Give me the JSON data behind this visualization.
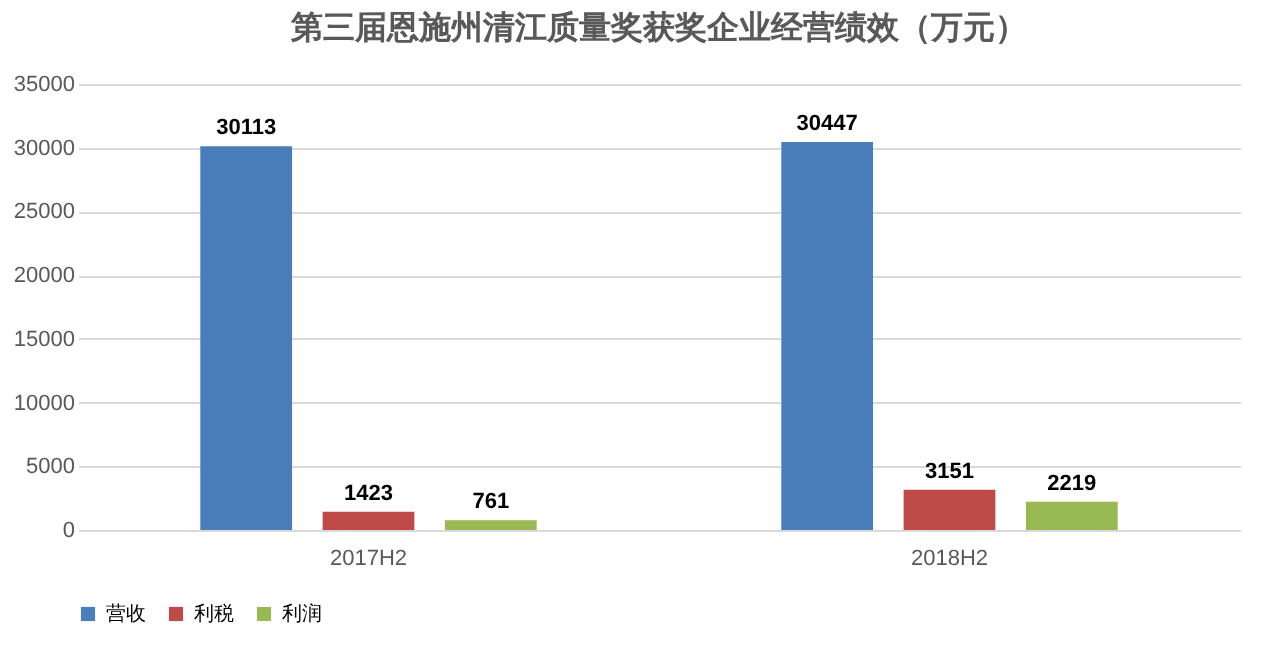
{
  "chart_data": {
    "type": "bar",
    "title": "第三届恩施州清江质量奖获奖企业经营绩效（万元）",
    "categories": [
      "2017H2",
      "2018H2"
    ],
    "series": [
      {
        "name": "营收",
        "color": "#4a7ebb",
        "values": [
          30113,
          30447
        ]
      },
      {
        "name": "利税",
        "color": "#be4b48",
        "values": [
          1423,
          3151
        ]
      },
      {
        "name": "利润",
        "color": "#98b954",
        "values": [
          761,
          2219
        ]
      }
    ],
    "ylim": [
      0,
      35000
    ],
    "yticks": [
      0,
      5000,
      10000,
      15000,
      20000,
      25000,
      30000,
      35000
    ],
    "grid": "y",
    "legend": "bottom",
    "data_labels": true
  }
}
